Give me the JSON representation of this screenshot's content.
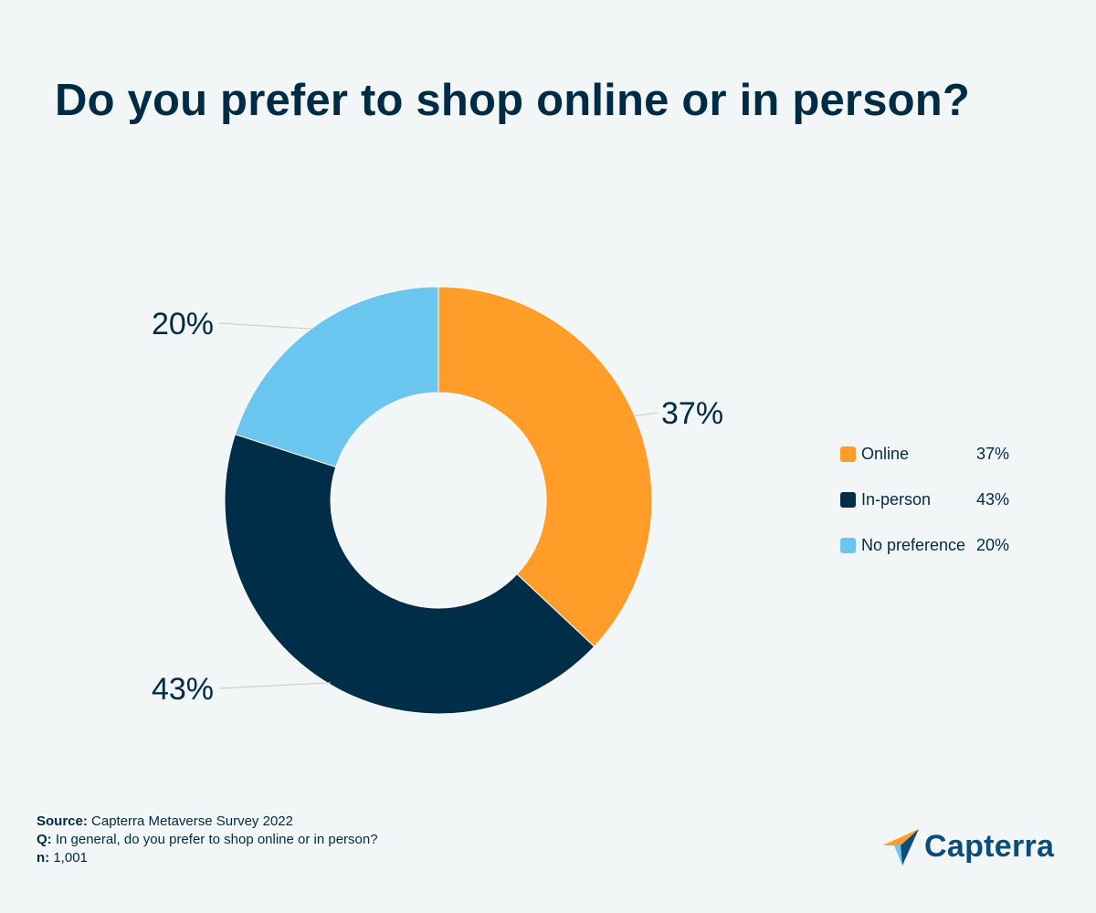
{
  "title": "Do you prefer to shop online or in person?",
  "chart_data": {
    "type": "pie",
    "donut": true,
    "title": "Do you prefer to shop online or in person?",
    "categories": [
      "Online",
      "In-person",
      "No preference"
    ],
    "values": [
      37,
      43,
      20
    ],
    "unit": "%",
    "data_labels": [
      "37%",
      "43%",
      "20%"
    ],
    "colors": [
      "#ff9d28",
      "#002d47",
      "#6bc6ef"
    ],
    "legend_position": "right",
    "legend": [
      {
        "name": "Online",
        "value": "37%"
      },
      {
        "name": "In-person",
        "value": "43%"
      },
      {
        "name": "No preference",
        "value": "20%"
      }
    ]
  },
  "footnote": {
    "source_label": "Source:",
    "source_text": "Capterra Metaverse Survey 2022",
    "q_label": "Q:",
    "q_text": "In general, do you prefer to shop online or in person?",
    "n_label": "n:",
    "n_text": "1,001"
  },
  "logo": {
    "text": "Capterra",
    "icon": "capterra-arrow-icon"
  }
}
